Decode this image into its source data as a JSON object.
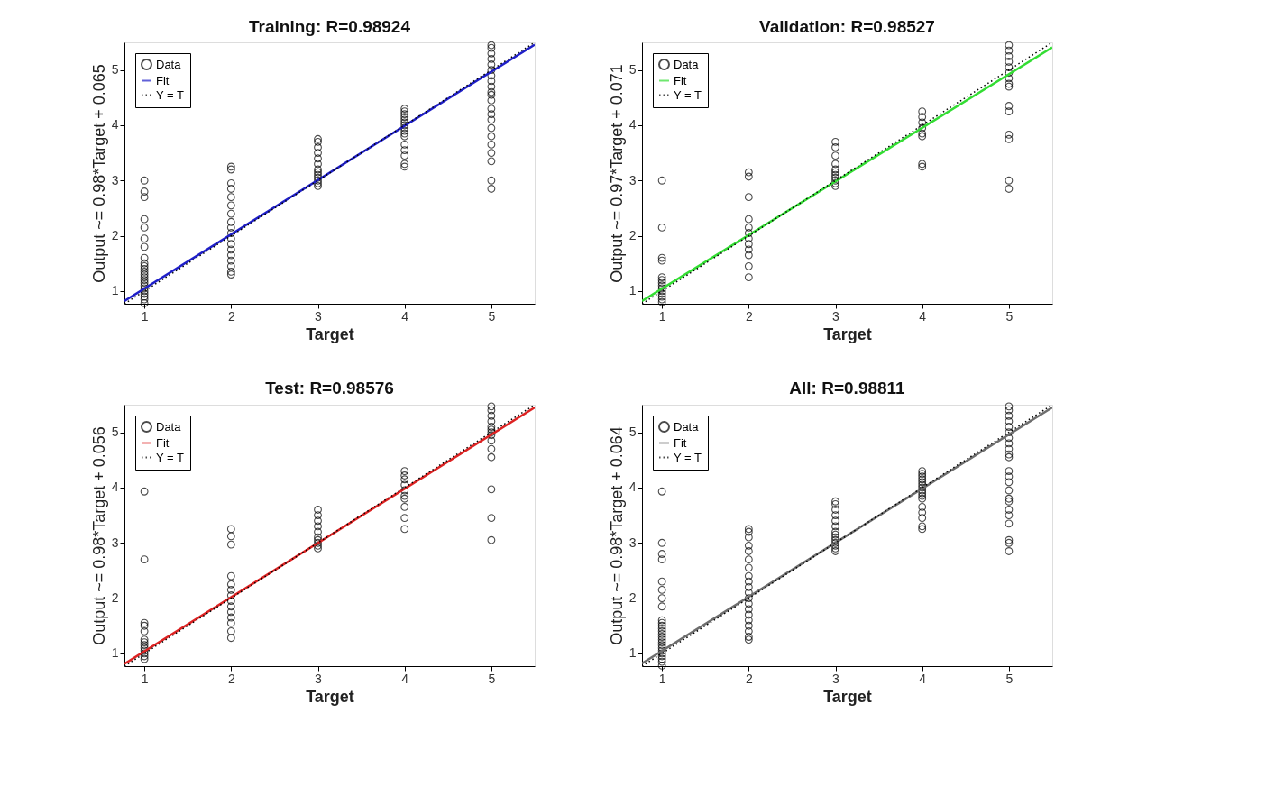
{
  "chart_data": [
    {
      "type": "scatter",
      "title": "Training: R=0.98924",
      "xlabel": "Target",
      "ylabel": "Output ~= 0.98*Target + 0.065",
      "xlim": [
        0.77,
        5.5
      ],
      "ylim": [
        0.77,
        5.5
      ],
      "xticks": [
        1,
        2,
        3,
        4,
        5
      ],
      "yticks": [
        1,
        2,
        3,
        4,
        5
      ],
      "grid": false,
      "legend": "top left",
      "series": [
        {
          "name": "Data",
          "marker": "circle",
          "color": "#000000",
          "x": [
            1,
            1,
            1,
            1,
            1,
            1,
            1,
            1,
            1,
            1,
            1,
            1,
            1,
            1,
            1,
            1,
            1,
            1,
            1,
            1,
            1,
            1,
            1,
            2,
            2,
            2,
            2,
            2,
            2,
            2,
            2,
            2,
            2,
            2,
            2,
            2,
            2,
            2,
            2,
            2,
            2,
            3,
            3,
            3,
            3,
            3,
            3,
            3,
            3,
            3,
            3,
            3,
            3,
            3,
            4,
            4,
            4,
            4,
            4,
            4,
            4,
            4,
            4,
            4,
            4,
            4,
            4,
            4,
            4,
            4,
            5,
            5,
            5,
            5,
            5,
            5,
            5,
            5,
            5,
            5,
            5,
            5,
            5,
            5,
            5,
            5,
            5,
            5,
            5,
            5,
            5,
            5
          ],
          "values": [
            0.78,
            0.85,
            0.9,
            0.95,
            1.0,
            1.05,
            1.1,
            1.15,
            1.2,
            1.25,
            1.3,
            1.35,
            1.4,
            1.45,
            1.5,
            1.6,
            1.8,
            1.95,
            2.15,
            2.3,
            2.7,
            2.8,
            3.0,
            1.3,
            1.35,
            1.45,
            1.55,
            1.65,
            1.75,
            1.85,
            1.95,
            2.05,
            2.15,
            2.25,
            2.4,
            2.55,
            2.7,
            2.85,
            2.95,
            3.2,
            3.25,
            2.9,
            2.95,
            3.0,
            3.05,
            3.1,
            3.15,
            3.2,
            3.3,
            3.4,
            3.5,
            3.6,
            3.7,
            3.75,
            3.25,
            3.3,
            3.45,
            3.55,
            3.65,
            3.8,
            3.85,
            3.9,
            3.95,
            4.0,
            4.05,
            4.1,
            4.15,
            4.2,
            4.25,
            4.3,
            2.85,
            3.0,
            3.35,
            3.5,
            3.65,
            3.8,
            3.95,
            4.1,
            4.2,
            4.3,
            4.45,
            4.55,
            4.6,
            4.7,
            4.8,
            4.9,
            5.0,
            5.1,
            5.2,
            5.3,
            5.4,
            5.45
          ]
        },
        {
          "name": "Fit",
          "type": "line",
          "line_style": "solid",
          "color": "#1f1fc8",
          "x": [
            0.77,
            5.5
          ],
          "values": [
            0.82,
            5.46
          ]
        },
        {
          "name": "Y = T",
          "type": "line",
          "line_style": "dotted",
          "color": "#000000",
          "x": [
            0.77,
            5.5
          ],
          "values": [
            0.77,
            5.5
          ]
        }
      ]
    },
    {
      "type": "scatter",
      "title": "Validation: R=0.98527",
      "xlabel": "Target",
      "ylabel": "Output ~= 0.97*Target + 0.071",
      "xlim": [
        0.77,
        5.5
      ],
      "ylim": [
        0.77,
        5.5
      ],
      "xticks": [
        1,
        2,
        3,
        4,
        5
      ],
      "yticks": [
        1,
        2,
        3,
        4,
        5
      ],
      "grid": false,
      "legend": "top left",
      "series": [
        {
          "name": "Data",
          "marker": "circle",
          "color": "#000000",
          "x": [
            1,
            1,
            1,
            1,
            1,
            1,
            1,
            1,
            1,
            1,
            1,
            1,
            1,
            1,
            2,
            2,
            2,
            2,
            2,
            2,
            2,
            2,
            2,
            2,
            2,
            2,
            3,
            3,
            3,
            3,
            3,
            3,
            3,
            3,
            3,
            3,
            3,
            4,
            4,
            4,
            4,
            4,
            4,
            4,
            4,
            5,
            5,
            5,
            5,
            5,
            5,
            5,
            5,
            5,
            5,
            5,
            5,
            5,
            5,
            5
          ],
          "values": [
            0.8,
            0.85,
            0.9,
            0.95,
            1.0,
            1.05,
            1.1,
            1.15,
            1.2,
            1.25,
            1.55,
            1.6,
            2.15,
            3.0,
            1.25,
            1.45,
            1.65,
            1.75,
            1.85,
            1.95,
            2.05,
            2.15,
            2.3,
            2.7,
            3.07,
            3.15,
            2.9,
            2.95,
            3.0,
            3.05,
            3.1,
            3.15,
            3.2,
            3.3,
            3.45,
            3.6,
            3.7,
            3.25,
            3.3,
            3.8,
            3.85,
            3.95,
            4.05,
            4.15,
            4.25,
            2.85,
            3.0,
            3.75,
            3.83,
            4.25,
            4.35,
            4.7,
            4.75,
            4.85,
            4.95,
            5.05,
            5.15,
            5.25,
            5.35,
            5.45
          ]
        },
        {
          "name": "Fit",
          "type": "line",
          "line_style": "solid",
          "color": "#33dd33",
          "x": [
            0.77,
            5.5
          ],
          "values": [
            0.82,
            5.41
          ]
        },
        {
          "name": "Y = T",
          "type": "line",
          "line_style": "dotted",
          "color": "#000000",
          "x": [
            0.77,
            5.5
          ],
          "values": [
            0.77,
            5.5
          ]
        }
      ]
    },
    {
      "type": "scatter",
      "title": "Test: R=0.98576",
      "xlabel": "Target",
      "ylabel": "Output ~= 0.98*Target + 0.056",
      "xlim": [
        0.77,
        5.5
      ],
      "ylim": [
        0.77,
        5.5
      ],
      "xticks": [
        1,
        2,
        3,
        4,
        5
      ],
      "yticks": [
        1,
        2,
        3,
        4,
        5
      ],
      "grid": false,
      "legend": "top left",
      "series": [
        {
          "name": "Data",
          "marker": "circle",
          "color": "#000000",
          "x": [
            1,
            1,
            1,
            1,
            1,
            1,
            1,
            1,
            1,
            1,
            1,
            1,
            1,
            2,
            2,
            2,
            2,
            2,
            2,
            2,
            2,
            2,
            2,
            2,
            2,
            2,
            2,
            3,
            3,
            3,
            3,
            3,
            3,
            3,
            3,
            3,
            3,
            4,
            4,
            4,
            4,
            4,
            4,
            4,
            4,
            4,
            4,
            5,
            5,
            5,
            5,
            5,
            5,
            5,
            5,
            5,
            5,
            5,
            5,
            5,
            5
          ],
          "values": [
            0.9,
            0.95,
            1.0,
            1.05,
            1.1,
            1.15,
            1.2,
            1.25,
            1.4,
            1.5,
            1.55,
            2.7,
            3.93,
            1.28,
            1.4,
            1.55,
            1.65,
            1.75,
            1.85,
            1.95,
            2.05,
            2.15,
            2.25,
            2.4,
            2.97,
            3.12,
            3.25,
            2.9,
            2.95,
            3.0,
            3.05,
            3.1,
            3.2,
            3.3,
            3.4,
            3.5,
            3.6,
            3.25,
            3.45,
            3.65,
            3.8,
            3.85,
            3.95,
            4.05,
            4.15,
            4.22,
            4.3,
            3.05,
            3.45,
            3.97,
            4.55,
            4.7,
            4.85,
            4.95,
            5.0,
            5.05,
            5.1,
            5.2,
            5.3,
            5.4,
            5.47
          ]
        },
        {
          "name": "Fit",
          "type": "line",
          "line_style": "solid",
          "color": "#dd2222",
          "x": [
            0.77,
            5.5
          ],
          "values": [
            0.81,
            5.45
          ]
        },
        {
          "name": "Y = T",
          "type": "line",
          "line_style": "dotted",
          "color": "#000000",
          "x": [
            0.77,
            5.5
          ],
          "values": [
            0.77,
            5.5
          ]
        }
      ]
    },
    {
      "type": "scatter",
      "title": "All: R=0.98811",
      "xlabel": "Target",
      "ylabel": "Output ~= 0.98*Target + 0.064",
      "xlim": [
        0.77,
        5.5
      ],
      "ylim": [
        0.77,
        5.5
      ],
      "xticks": [
        1,
        2,
        3,
        4,
        5
      ],
      "yticks": [
        1,
        2,
        3,
        4,
        5
      ],
      "grid": false,
      "legend": "top left",
      "series": [
        {
          "name": "Data",
          "marker": "circle",
          "color": "#000000",
          "x": [
            1,
            1,
            1,
            1,
            1,
            1,
            1,
            1,
            1,
            1,
            1,
            1,
            1,
            1,
            1,
            1,
            1,
            1,
            1,
            1,
            1,
            1,
            1,
            1,
            1,
            2,
            2,
            2,
            2,
            2,
            2,
            2,
            2,
            2,
            2,
            2,
            2,
            2,
            2,
            2,
            2,
            2,
            2,
            2,
            2,
            3,
            3,
            3,
            3,
            3,
            3,
            3,
            3,
            3,
            3,
            3,
            3,
            3,
            3,
            4,
            4,
            4,
            4,
            4,
            4,
            4,
            4,
            4,
            4,
            4,
            4,
            4,
            4,
            4,
            4,
            5,
            5,
            5,
            5,
            5,
            5,
            5,
            5,
            5,
            5,
            5,
            5,
            5,
            5,
            5,
            5,
            5,
            5,
            5,
            5,
            5,
            5,
            5
          ],
          "values": [
            0.78,
            0.85,
            0.9,
            0.95,
            1.0,
            1.05,
            1.1,
            1.15,
            1.2,
            1.25,
            1.3,
            1.35,
            1.4,
            1.45,
            1.5,
            1.55,
            1.6,
            1.85,
            2.0,
            2.15,
            2.3,
            2.7,
            2.8,
            3.0,
            3.93,
            1.25,
            1.3,
            1.4,
            1.5,
            1.6,
            1.7,
            1.8,
            1.9,
            2.0,
            2.1,
            2.2,
            2.3,
            2.4,
            2.55,
            2.7,
            2.85,
            2.95,
            3.1,
            3.2,
            3.25,
            2.85,
            2.9,
            2.95,
            3.0,
            3.05,
            3.1,
            3.15,
            3.2,
            3.3,
            3.4,
            3.5,
            3.6,
            3.7,
            3.75,
            3.25,
            3.3,
            3.45,
            3.55,
            3.65,
            3.8,
            3.85,
            3.9,
            3.95,
            4.0,
            4.05,
            4.1,
            4.15,
            4.2,
            4.25,
            4.3,
            2.85,
            3.0,
            3.05,
            3.35,
            3.5,
            3.6,
            3.75,
            3.8,
            3.95,
            4.1,
            4.2,
            4.3,
            4.55,
            4.6,
            4.7,
            4.8,
            4.9,
            5.0,
            5.1,
            5.2,
            5.3,
            5.4,
            5.47
          ]
        },
        {
          "name": "Fit",
          "type": "line",
          "line_style": "solid",
          "color": "#6e6e6e",
          "x": [
            0.77,
            5.5
          ],
          "values": [
            0.82,
            5.45
          ]
        },
        {
          "name": "Y = T",
          "type": "line",
          "line_style": "dotted",
          "color": "#000000",
          "x": [
            0.77,
            5.5
          ],
          "values": [
            0.77,
            5.5
          ]
        }
      ]
    }
  ]
}
